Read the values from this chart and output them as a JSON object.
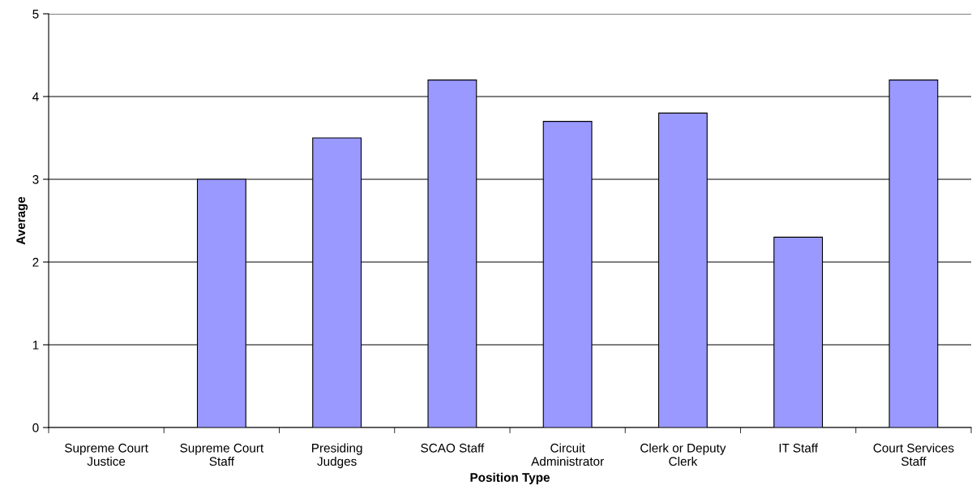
{
  "chart_data": {
    "type": "bar",
    "xlabel": "Position Type",
    "ylabel": "Average",
    "categories": [
      "Supreme Court\nJustice",
      "Supreme Court\nStaff",
      "Presiding\nJudges",
      "SCAO Staff",
      "Circuit\nAdministrator",
      "Clerk or Deputy\nClerk",
      "IT Staff",
      "Court Services\nStaff"
    ],
    "values": [
      null,
      3.0,
      3.5,
      4.2,
      3.7,
      3.8,
      2.3,
      4.2
    ],
    "color": "#9999ff",
    "ylim": [
      0,
      5
    ],
    "yticks": [
      0,
      1,
      2,
      3,
      4,
      5
    ],
    "grid": "y",
    "legend": false
  }
}
